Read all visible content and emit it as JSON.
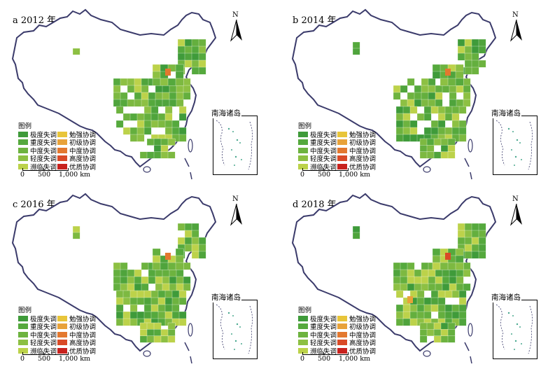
{
  "panels": [
    {
      "label": "a 2012 年",
      "orange_patches": 1,
      "accent_yellow": 0.12
    },
    {
      "label": "b 2014 年",
      "orange_patches": 1,
      "accent_yellow": 0.18
    },
    {
      "label": "c 2016 年",
      "orange_patches": 1,
      "accent_yellow": 0.24
    },
    {
      "label": "d 2018 年",
      "orange_patches": 2,
      "accent_yellow": 0.3
    }
  ],
  "north_label": "N",
  "inset_label": "南海诸岛",
  "legend": {
    "title": "图例",
    "items": [
      {
        "label": "极度失调",
        "color": "#3f9b3a"
      },
      {
        "label": "重度失调",
        "color": "#55a93d"
      },
      {
        "label": "中度失调",
        "color": "#6db33f"
      },
      {
        "label": "轻度失调",
        "color": "#8dc043"
      },
      {
        "label": "濒临失调",
        "color": "#bcd24a"
      },
      {
        "label": "勉强协调",
        "color": "#e8c53a"
      },
      {
        "label": "初级协调",
        "color": "#e8a23a"
      },
      {
        "label": "中度协调",
        "color": "#e3782f"
      },
      {
        "label": "高度协调",
        "color": "#d94a27"
      },
      {
        "label": "优质协调",
        "color": "#c8221e"
      }
    ]
  },
  "scale": {
    "t0": "0",
    "t1": "500",
    "t2": "1,000 km"
  },
  "colors": {
    "outline": "#3b3b6b",
    "land": "#ffffff"
  }
}
